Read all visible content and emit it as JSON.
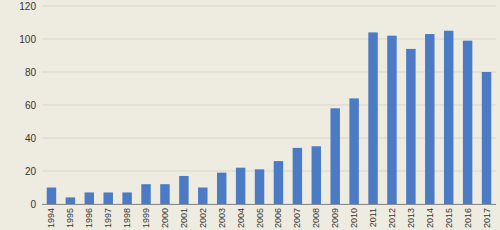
{
  "chart_data": {
    "type": "bar",
    "categories": [
      "1994",
      "1995",
      "1996",
      "1997",
      "1998",
      "1999",
      "2000",
      "2001",
      "2002",
      "2003",
      "2004",
      "2005",
      "2006",
      "2007",
      "2008",
      "2009",
      "2010",
      "2011",
      "2012",
      "2013",
      "2014",
      "2015",
      "2016",
      "2017"
    ],
    "values": [
      10,
      4,
      7,
      7,
      7,
      12,
      12,
      17,
      10,
      19,
      22,
      21,
      26,
      34,
      35,
      58,
      64,
      104,
      102,
      94,
      103,
      105,
      99,
      80
    ],
    "color": "#4a7bc4",
    "ylim": [
      0,
      120
    ],
    "yticks": [
      0,
      20,
      40,
      60,
      80,
      100,
      120
    ],
    "grid": true
  }
}
